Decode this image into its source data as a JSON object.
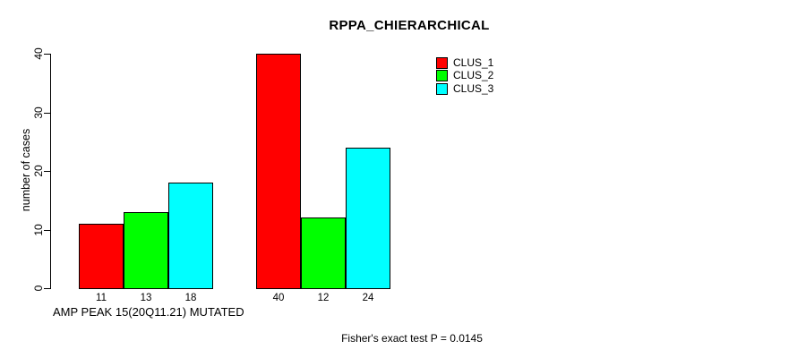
{
  "chart_data": {
    "type": "bar",
    "title": "RPPA_CHIERARCHICAL",
    "ylabel": "number of cases",
    "xlabel": "AMP PEAK 15(20Q11.21) MUTATED",
    "annotation": "Fisher's exact test P = 0.0145",
    "ylim": [
      0,
      40
    ],
    "yticks": [
      0,
      10,
      20,
      30,
      40
    ],
    "grid": false,
    "legend_position": "top-right",
    "bar_border_color": "#000000",
    "background_color": "#ffffff",
    "series": [
      {
        "name": "CLUS_1",
        "color": "#ff0000"
      },
      {
        "name": "CLUS_2",
        "color": "#00ff00"
      },
      {
        "name": "CLUS_3",
        "color": "#00ffff"
      }
    ],
    "groups": [
      {
        "values": [
          11,
          13,
          18
        ]
      },
      {
        "values": [
          40,
          12,
          24
        ]
      }
    ],
    "bar_value_labels": [
      11,
      13,
      18,
      40,
      12,
      24
    ]
  }
}
